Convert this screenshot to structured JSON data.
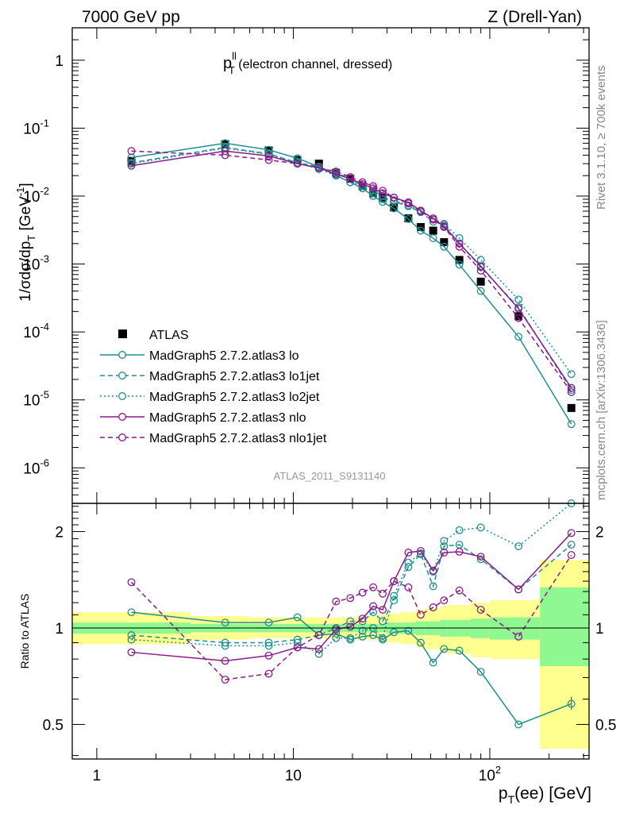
{
  "header": {
    "left": "7000 GeV pp",
    "right": "Z (Drell-Yan)"
  },
  "side_labels": {
    "rivet": "Rivet 3.1.10, ≥ 700k events",
    "mcplots": "mcplots.cern.ch [arXiv:1306.3436]"
  },
  "plot_title": {
    "main": "p",
    "sup": "ll",
    "sub": "T",
    "rest": " (electron channel, dressed)"
  },
  "analysis_tag": "ATLAS_2011_S9131140",
  "colors": {
    "teal": "#1f8f8f",
    "purple": "#8b1a8b",
    "band_inner": "#90f890",
    "band_outer": "#ffff90"
  },
  "chart_data": [
    {
      "type": "line",
      "panel": "main",
      "ylabel": "1/σdσ/dp_T [GeV^-1]",
      "xscale": "log",
      "yscale": "log",
      "xlim": [
        0.75,
        320
      ],
      "ylim": [
        3e-07,
        3
      ],
      "yticks": [
        {
          "v": 1,
          "m": "1",
          "e": ""
        },
        {
          "v": 0.1,
          "m": "10",
          "e": "-1"
        },
        {
          "v": 0.01,
          "m": "10",
          "e": "-2"
        },
        {
          "v": 0.001,
          "m": "10",
          "e": "-3"
        },
        {
          "v": 0.0001,
          "m": "10",
          "e": "-4"
        },
        {
          "v": 1e-05,
          "m": "10",
          "e": "-5"
        },
        {
          "v": 1e-06,
          "m": "10",
          "e": "-6"
        }
      ],
      "x": [
        1.5,
        4.5,
        7.5,
        10.5,
        13.5,
        16.5,
        19.5,
        22.5,
        25.5,
        28.5,
        32.5,
        38.5,
        44.5,
        51.5,
        58.5,
        70,
        90,
        140,
        260
      ],
      "legend": [
        {
          "name": "ATLAS",
          "ref": "atlas"
        },
        {
          "name": "MadGraph5 2.7.2.atlas3 lo",
          "ref": "lo"
        },
        {
          "name": "MadGraph5 2.7.2.atlas3 lo1jet",
          "ref": "lo1jet"
        },
        {
          "name": "MadGraph5 2.7.2.atlas3 lo2jet",
          "ref": "lo2jet"
        },
        {
          "name": "MadGraph5 2.7.2.atlas3 nlo",
          "ref": "nlo"
        },
        {
          "name": "MadGraph5 2.7.2.atlas3 nlo1jet",
          "ref": "nlo1jet"
        }
      ],
      "series": [
        {
          "name": "ATLAS",
          "id": "atlas",
          "style": "data",
          "color": "#000000",
          "values": [
            0.033,
            0.058,
            0.047,
            0.034,
            0.03,
            0.022,
            0.018,
            0.014,
            0.011,
            0.0095,
            0.0068,
            0.0047,
            0.0035,
            0.0031,
            0.0021,
            0.00115,
            0.00055,
            0.00017,
            7.6e-06
          ]
        },
        {
          "name": "MadGraph5 2.7.2.atlas3 lo",
          "id": "lo",
          "style": "solid",
          "color": "#1f8f8f",
          "values": [
            0.037,
            0.06,
            0.048,
            0.036,
            0.027,
            0.02,
            0.016,
            0.013,
            0.01,
            0.0082,
            0.0066,
            0.0046,
            0.0031,
            0.0024,
            0.0018,
            0.00098,
            0.0004,
            8.5e-05,
            4.4e-06
          ]
        },
        {
          "name": "MadGraph5 2.7.2.atlas3 lo1jet",
          "id": "lo1jet",
          "style": "dashed",
          "color": "#1f8f8f",
          "values": [
            0.031,
            0.052,
            0.042,
            0.031,
            0.027,
            0.022,
            0.018,
            0.014,
            0.012,
            0.01,
            0.0083,
            0.0071,
            0.0058,
            0.0042,
            0.0038,
            0.002,
            0.0009,
            0.00023,
            1.4e-05
          ]
        },
        {
          "name": "MadGraph5 2.7.2.atlas3 lo2jet",
          "id": "lo2jet",
          "style": "dotted",
          "color": "#1f8f8f",
          "values": [
            0.03,
            0.051,
            0.041,
            0.031,
            0.025,
            0.02,
            0.016,
            0.014,
            0.011,
            0.009,
            0.0087,
            0.0073,
            0.0061,
            0.0047,
            0.0039,
            0.0024,
            0.00115,
            0.0003,
            2.4e-05
          ]
        },
        {
          "name": "MadGraph5 2.7.2.atlas3 nlo",
          "id": "nlo",
          "style": "solid",
          "color": "#8b1a8b",
          "values": [
            0.028,
            0.046,
            0.039,
            0.03,
            0.026,
            0.021,
            0.018,
            0.015,
            0.013,
            0.011,
            0.0095,
            0.0081,
            0.0061,
            0.0047,
            0.0036,
            0.002,
            0.00093,
            0.00022,
            1.5e-05
          ]
        },
        {
          "name": "MadGraph5 2.7.2.atlas3 nlo1jet",
          "id": "nlo1jet",
          "style": "dashed",
          "color": "#8b1a8b",
          "values": [
            0.046,
            0.04,
            0.034,
            0.03,
            0.026,
            0.023,
            0.019,
            0.016,
            0.014,
            0.012,
            0.0095,
            0.0078,
            0.006,
            0.0045,
            0.0035,
            0.0018,
            0.0008,
            0.00016,
            1.3e-05
          ]
        }
      ]
    },
    {
      "type": "line",
      "panel": "ratio",
      "xlabel": "p_T(ee) [GeV]",
      "ylabel": "Ratio to ATLAS",
      "xscale": "log",
      "yscale": "log",
      "xlim": [
        0.75,
        320
      ],
      "ylim": [
        0.39,
        2.45
      ],
      "xticks": [
        {
          "v": 1,
          "m": "1",
          "e": ""
        },
        {
          "v": 10,
          "m": "10",
          "e": ""
        },
        {
          "v": 100,
          "m": "10",
          "e": "2"
        }
      ],
      "yticks": [
        {
          "v": 2,
          "label": "2"
        },
        {
          "v": 1,
          "label": "1"
        },
        {
          "v": 0.5,
          "label": "0.5"
        }
      ],
      "x": [
        1.5,
        4.5,
        7.5,
        10.5,
        13.5,
        16.5,
        19.5,
        22.5,
        25.5,
        28.5,
        32.5,
        38.5,
        44.5,
        51.5,
        58.5,
        70,
        90,
        140,
        260
      ],
      "bands": {
        "edges": [
          0.75,
          3,
          6,
          9,
          12,
          15,
          18,
          21,
          24,
          27,
          30,
          35,
          42,
          47,
          56,
          61,
          80,
          100,
          180,
          320
        ],
        "inner_lo": [
          0.96,
          0.97,
          0.97,
          0.97,
          0.97,
          0.97,
          0.97,
          0.97,
          0.97,
          0.97,
          0.96,
          0.96,
          0.95,
          0.95,
          0.94,
          0.94,
          0.93,
          0.92,
          0.76
        ],
        "inner_hi": [
          1.04,
          1.03,
          1.03,
          1.03,
          1.03,
          1.03,
          1.03,
          1.03,
          1.03,
          1.03,
          1.04,
          1.04,
          1.05,
          1.05,
          1.06,
          1.06,
          1.07,
          1.08,
          1.34
        ],
        "outer_lo": [
          0.89,
          0.92,
          0.93,
          0.93,
          0.93,
          0.93,
          0.93,
          0.92,
          0.92,
          0.91,
          0.9,
          0.89,
          0.87,
          0.86,
          0.84,
          0.83,
          0.81,
          0.8,
          0.42
        ],
        "outer_hi": [
          1.12,
          1.09,
          1.08,
          1.08,
          1.08,
          1.08,
          1.08,
          1.09,
          1.09,
          1.1,
          1.11,
          1.12,
          1.14,
          1.15,
          1.17,
          1.18,
          1.2,
          1.22,
          1.63
        ]
      },
      "series": [
        {
          "name": "MadGraph5 2.7.2.atlas3 lo",
          "id": "lo",
          "style": "solid",
          "color": "#1f8f8f",
          "values": [
            1.12,
            1.04,
            1.04,
            1.08,
            0.95,
            0.96,
            0.92,
            0.94,
            0.95,
            0.92,
            0.97,
            0.98,
            0.9,
            0.78,
            0.86,
            0.85,
            0.73,
            0.5,
            0.58
          ]
        },
        {
          "name": "MadGraph5 2.7.2.atlas3 lo1jet",
          "id": "lo1jet",
          "style": "dashed",
          "color": "#1f8f8f",
          "values": [
            0.95,
            0.9,
            0.9,
            0.92,
            0.95,
            1.0,
            1.05,
            1.05,
            1.12,
            1.05,
            1.22,
            1.55,
            1.7,
            1.35,
            1.8,
            1.82,
            1.64,
            1.32,
            1.82
          ]
        },
        {
          "name": "MadGraph5 2.7.2.atlas3 lo2jet",
          "id": "lo2jet",
          "style": "dotted",
          "color": "#1f8f8f",
          "values": [
            0.92,
            0.88,
            0.88,
            0.9,
            0.83,
            0.93,
            0.93,
            0.98,
            1.0,
            0.93,
            1.26,
            1.6,
            1.71,
            1.5,
            1.87,
            2.02,
            2.06,
            1.8,
            2.45
          ]
        },
        {
          "name": "MadGraph5 2.7.2.atlas3 nlo",
          "id": "nlo",
          "style": "solid",
          "color": "#8b1a8b",
          "values": [
            0.84,
            0.79,
            0.82,
            0.87,
            0.86,
            0.99,
            1.01,
            1.07,
            1.17,
            1.14,
            1.4,
            1.72,
            1.74,
            1.51,
            1.72,
            1.73,
            1.67,
            1.32,
            1.98
          ]
        },
        {
          "name": "MadGraph5 2.7.2.atlas3 nlo1jet",
          "id": "nlo1jet",
          "style": "dashed",
          "color": "#8b1a8b",
          "values": [
            1.39,
            0.69,
            0.72,
            0.87,
            0.95,
            1.21,
            1.24,
            1.29,
            1.34,
            1.28,
            1.4,
            1.34,
            1.1,
            1.16,
            1.22,
            1.31,
            1.14,
            0.94,
            1.69
          ]
        }
      ]
    }
  ]
}
